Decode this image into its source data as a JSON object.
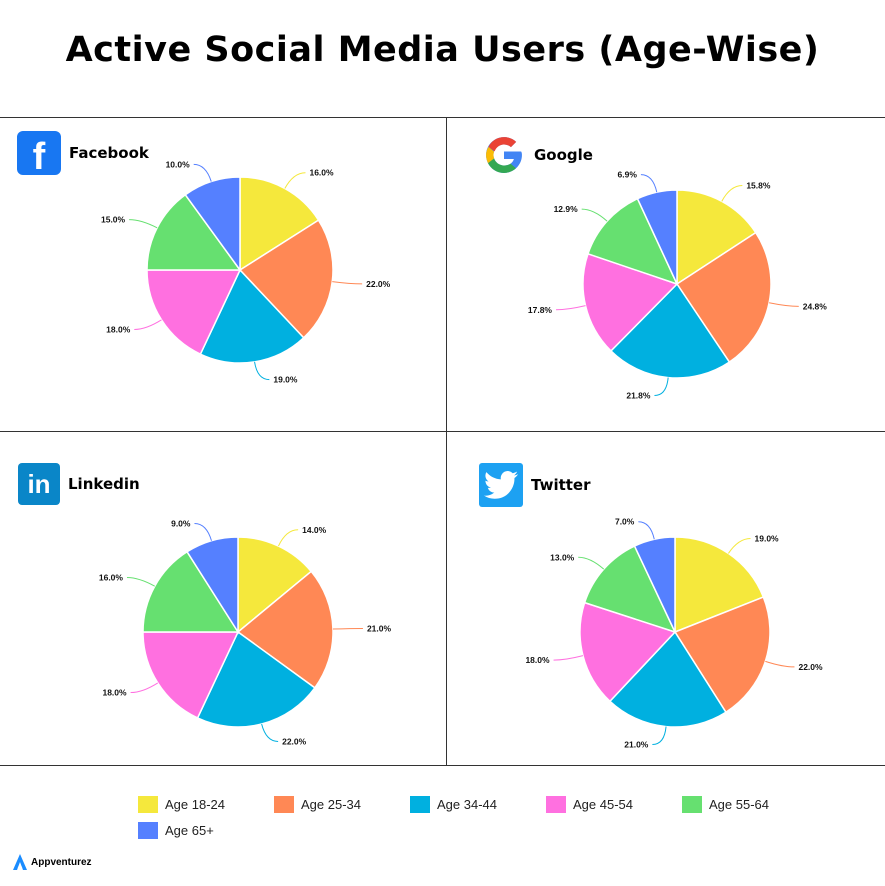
{
  "title": "Active Social Media Users (Age-Wise)",
  "brand": "Appventurez",
  "chart_data": [
    {
      "type": "pie",
      "title": "Facebook",
      "icon": "facebook-icon",
      "categories": [
        "Age 18-24",
        "Age 25-34",
        "Age 34-44",
        "Age 45-54",
        "Age 55-64",
        "Age 65+"
      ],
      "values": [
        16.0,
        22.0,
        19.0,
        18.0,
        15.0,
        10.0
      ],
      "labels": [
        "16.0%",
        "22.0%",
        "19.0%",
        "18.0%",
        "15.0%",
        "10.0%"
      ]
    },
    {
      "type": "pie",
      "title": "Google",
      "icon": "google-icon",
      "categories": [
        "Age 18-24",
        "Age 25-34",
        "Age 34-44",
        "Age 45-54",
        "Age 55-64",
        "Age 65+"
      ],
      "values": [
        15.8,
        24.8,
        21.8,
        17.8,
        12.9,
        6.9
      ],
      "labels": [
        "15.8%",
        "24.8%",
        "21.8%",
        "17.8%",
        "12.9%",
        "6.9%"
      ]
    },
    {
      "type": "pie",
      "title": "Linkedin",
      "icon": "linkedin-icon",
      "categories": [
        "Age 18-24",
        "Age 25-34",
        "Age 34-44",
        "Age 45-54",
        "Age 55-64",
        "Age 65+"
      ],
      "values": [
        14.0,
        21.0,
        22.0,
        18.0,
        16.0,
        9.0
      ],
      "labels": [
        "14.0%",
        "21.0%",
        "22.0%",
        "18.0%",
        "16.0%",
        "9.0%"
      ]
    },
    {
      "type": "pie",
      "title": "Twitter",
      "icon": "twitter-icon",
      "categories": [
        "Age 18-24",
        "Age 25-34",
        "Age 34-44",
        "Age 45-54",
        "Age 55-64",
        "Age 65+"
      ],
      "values": [
        19.0,
        22.0,
        21.0,
        18.0,
        13.0,
        7.0
      ],
      "labels": [
        "19.0%",
        "22.0%",
        "21.0%",
        "18.0%",
        "13.0%",
        "7.0%"
      ]
    }
  ],
  "legend": {
    "placement": "bottom",
    "items": [
      {
        "label": "Age 18-24",
        "color": "#f5e83c"
      },
      {
        "label": "Age 25-34",
        "color": "#ff8855"
      },
      {
        "label": "Age 34-44",
        "color": "#00b0e0"
      },
      {
        "label": "Age 45-54",
        "color": "#ff70e0"
      },
      {
        "label": "Age 55-64",
        "color": "#66e070"
      },
      {
        "label": "Age 65+",
        "color": "#5580ff"
      }
    ]
  }
}
